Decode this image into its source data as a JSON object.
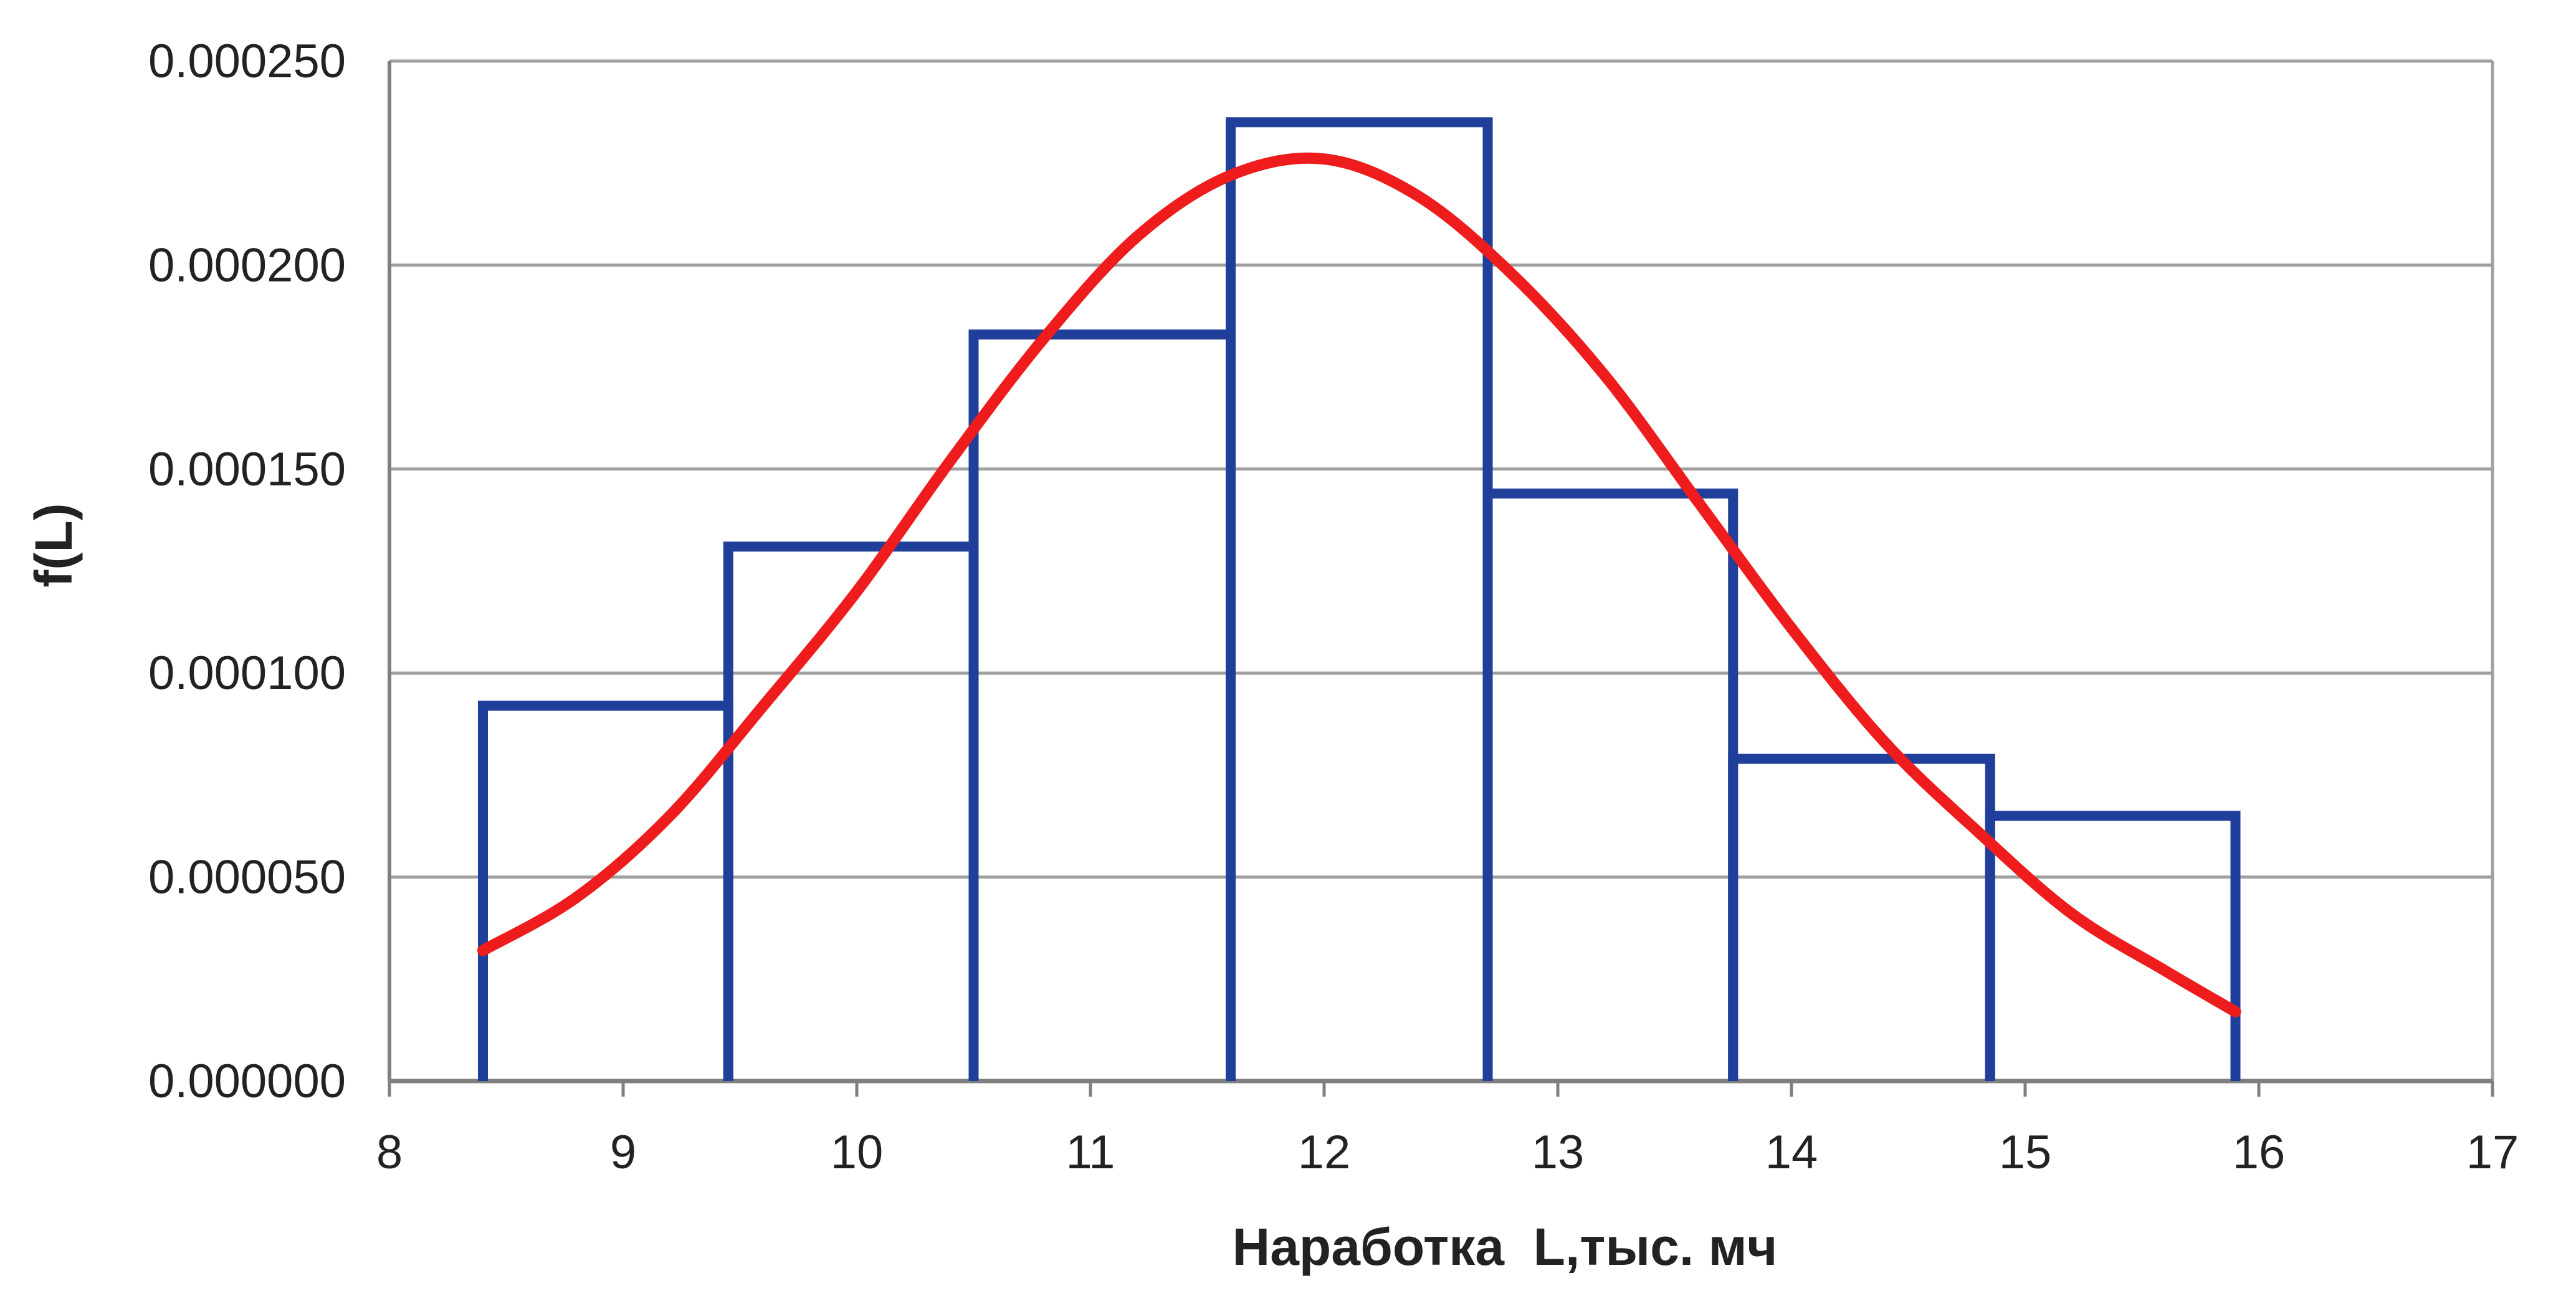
{
  "chart_data": {
    "type": "bar",
    "title": "",
    "xlabel": "Наработка  L,тыс. мч",
    "ylabel": "f(L)",
    "xlim": [
      8,
      17
    ],
    "ylim": [
      0,
      0.00025
    ],
    "grid": true,
    "legend": "none",
    "x_ticks": [
      "8",
      "9",
      "10",
      "11",
      "12",
      "13",
      "14",
      "15",
      "16",
      "17"
    ],
    "y_ticks": [
      "0.000000",
      "0.000050",
      "0.000100",
      "0.000150",
      "0.000200",
      "0.000250"
    ],
    "histogram": {
      "name": "",
      "bins": [
        {
          "from": 8.4,
          "to": 9.45,
          "value": 9.2e-05
        },
        {
          "from": 9.45,
          "to": 10.5,
          "value": 0.000131
        },
        {
          "from": 10.5,
          "to": 11.6,
          "value": 0.000183
        },
        {
          "from": 11.6,
          "to": 12.7,
          "value": 0.000235
        },
        {
          "from": 12.7,
          "to": 13.75,
          "value": 0.000144
        },
        {
          "from": 13.75,
          "to": 14.85,
          "value": 7.9e-05
        },
        {
          "from": 14.85,
          "to": 15.9,
          "value": 6.5e-05
        }
      ]
    },
    "curve": {
      "name": "",
      "points": [
        {
          "x": 8.4,
          "y": 3.2e-05
        },
        {
          "x": 8.8,
          "y": 4.5e-05
        },
        {
          "x": 9.2,
          "y": 6.5e-05
        },
        {
          "x": 9.6,
          "y": 9.2e-05
        },
        {
          "x": 10.0,
          "y": 0.00012
        },
        {
          "x": 10.4,
          "y": 0.000152
        },
        {
          "x": 10.8,
          "y": 0.000182
        },
        {
          "x": 11.2,
          "y": 0.000207
        },
        {
          "x": 11.6,
          "y": 0.000222
        },
        {
          "x": 12.0,
          "y": 0.000226
        },
        {
          "x": 12.4,
          "y": 0.000217
        },
        {
          "x": 12.8,
          "y": 0.000198
        },
        {
          "x": 13.2,
          "y": 0.000173
        },
        {
          "x": 13.6,
          "y": 0.000142
        },
        {
          "x": 14.0,
          "y": 0.000111
        },
        {
          "x": 14.4,
          "y": 8.3e-05
        },
        {
          "x": 14.8,
          "y": 6.1e-05
        },
        {
          "x": 15.2,
          "y": 4.1e-05
        },
        {
          "x": 15.6,
          "y": 2.7e-05
        },
        {
          "x": 15.9,
          "y": 1.7e-05
        }
      ]
    },
    "colors": {
      "histogram": "#1f3f9a",
      "curve": "#ee1c1c",
      "grid": "#a0a0a0",
      "axis": "#7f7f7f"
    }
  }
}
